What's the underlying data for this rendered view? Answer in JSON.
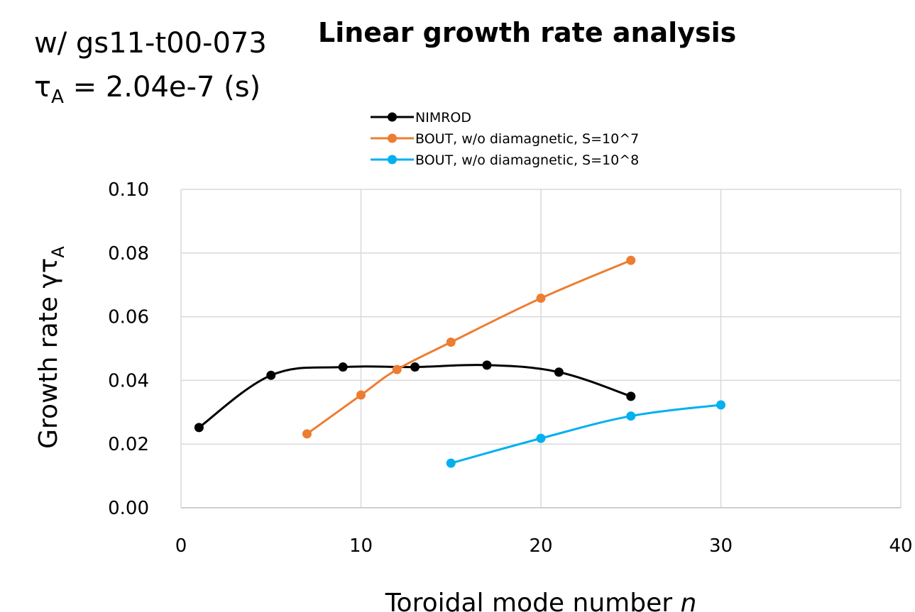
{
  "header": {
    "run_label": "w/ gs11-t00-073",
    "tau_symbol": "τ",
    "tau_sub": "A",
    "tau_value": " = 2.04e-7 (s)"
  },
  "chart_data": {
    "type": "line",
    "title": "Linear growth rate analysis",
    "xlabel": "Toroidal mode number",
    "xlabel_var": "n",
    "ylabel": "Growth rate γτ",
    "ylabel_sub": "A",
    "xlim": [
      0,
      40
    ],
    "ylim": [
      0,
      0.1
    ],
    "xticks": [
      0,
      10,
      20,
      30,
      40
    ],
    "yticks": [
      0.0,
      0.02,
      0.04,
      0.06,
      0.08,
      0.1
    ],
    "xtick_labels": [
      "0",
      "10",
      "20",
      "30",
      "40"
    ],
    "ytick_labels": [
      "0.00",
      "0.02",
      "0.04",
      "0.06",
      "0.08",
      "0.10"
    ],
    "grid": "vertical and horizontal major gridlines",
    "legend_position": "top-right",
    "series": [
      {
        "name": "NIMROD",
        "color": "#000000",
        "x": [
          1,
          5,
          9,
          13,
          17,
          21,
          25
        ],
        "y": [
          0.0252,
          0.0416,
          0.0442,
          0.0442,
          0.0448,
          0.0426,
          0.035
        ]
      },
      {
        "name": "BOUT, w/o diamagnetic, S=10^7",
        "color": "#ED7D31",
        "x": [
          7,
          10,
          12,
          15,
          20,
          25
        ],
        "y": [
          0.0232,
          0.0354,
          0.0434,
          0.052,
          0.0658,
          0.0777
        ]
      },
      {
        "name": "BOUT, w/o diamagnetic, S=10^8",
        "color": "#00B0F0",
        "x": [
          15,
          20,
          25,
          30
        ],
        "y": [
          0.014,
          0.0218,
          0.0288,
          0.0323
        ]
      }
    ]
  }
}
